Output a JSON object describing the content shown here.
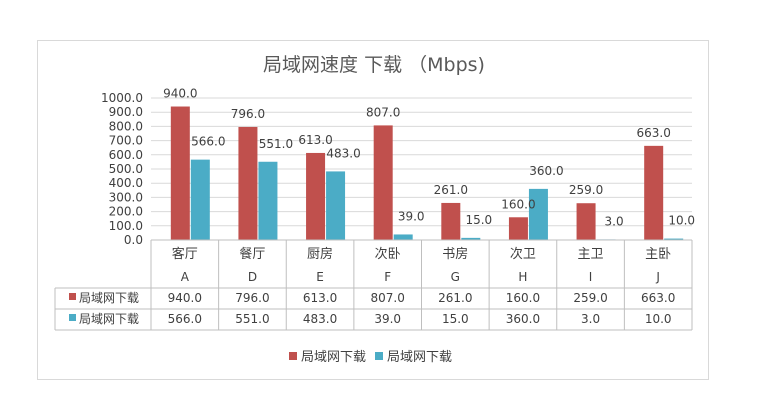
{
  "chart_data": {
    "type": "bar",
    "title": "局域网速度 下载 （Mbps)",
    "categories": [
      "客厅",
      "餐厅",
      "厨房",
      "次卧",
      "书房",
      "次卫",
      "主卫",
      "主卧"
    ],
    "sub_categories": [
      "A",
      "D",
      "E",
      "F",
      "G",
      "H",
      "I",
      "J"
    ],
    "series": [
      {
        "name": "局域网下载",
        "color": "#c0504d",
        "values": [
          940.0,
          796.0,
          613.0,
          807.0,
          261.0,
          160.0,
          259.0,
          663.0
        ],
        "labels": [
          "940.0",
          "796.0",
          "613.0",
          "807.0",
          "261.0",
          "160.0",
          "259.0",
          "663.0"
        ]
      },
      {
        "name": "局域网下载",
        "color": "#4bacc6",
        "values": [
          566.0,
          551.0,
          483.0,
          39.0,
          15.0,
          360.0,
          3.0,
          10.0
        ],
        "labels": [
          "566.0",
          "551.0",
          "483.0",
          "39.0",
          "15.0",
          "360.0",
          "3.0",
          "10.0"
        ]
      }
    ],
    "yticks": [
      "0.0",
      "100.0",
      "200.0",
      "300.0",
      "400.0",
      "500.0",
      "600.0",
      "700.0",
      "800.0",
      "900.0",
      "1000.0"
    ],
    "ylim": [
      0,
      1000
    ],
    "grid": true,
    "legend": "bottom",
    "data_table": true
  }
}
